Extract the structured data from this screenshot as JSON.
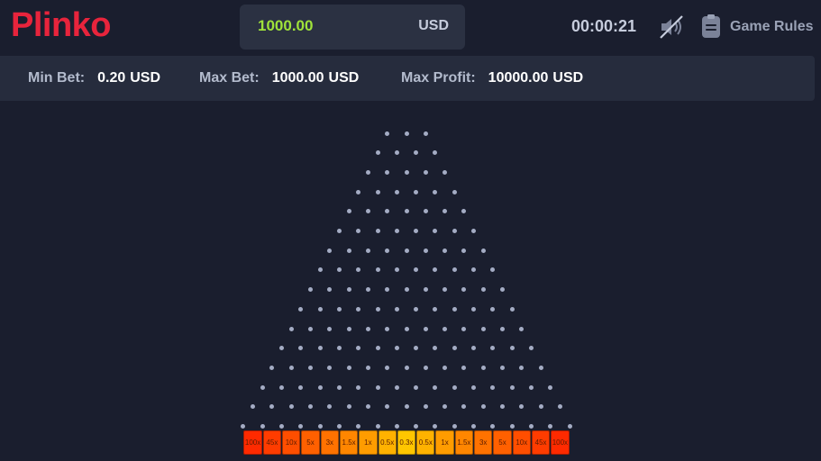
{
  "header": {
    "logo": "Plinko",
    "balance": {
      "value": "1000.00",
      "currency": "USD"
    },
    "timer": "00:00:21",
    "sound_icon": "sound-muted-icon",
    "rules_icon": "clipboard-icon",
    "rules_label": "Game Rules"
  },
  "limits": [
    {
      "label": "Min Bet:",
      "value": "0.20",
      "currency": "USD"
    },
    {
      "label": "Max Bet:",
      "value": "1000.00",
      "currency": "USD"
    },
    {
      "label": "Max Profit:",
      "value": "10000.00",
      "currency": "USD"
    }
  ],
  "board": {
    "rows": 16,
    "peg_color": "#a4acc4",
    "multipliers": [
      "100x",
      "45x",
      "10x",
      "5x",
      "3x",
      "1.5x",
      "1x",
      "0.5x",
      "0.3x",
      "0.5x",
      "1x",
      "1.5x",
      "3x",
      "5x",
      "10x",
      "45x",
      "100x"
    ],
    "slot_colors": [
      "#ff2a00",
      "#ff3c00",
      "#ff4e00",
      "#ff6000",
      "#ff7200",
      "#ff8600",
      "#ff9c00",
      "#ffb200",
      "#ffc600",
      "#ffb200",
      "#ff9c00",
      "#ff8600",
      "#ff7200",
      "#ff6000",
      "#ff4e00",
      "#ff3c00",
      "#ff2a00"
    ]
  }
}
